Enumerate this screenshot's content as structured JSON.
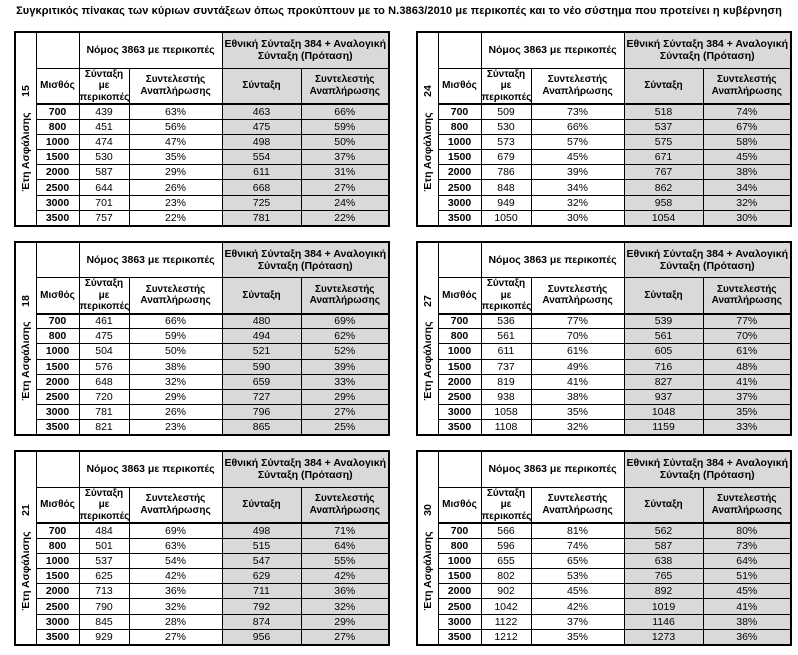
{
  "title": "Συγκριτικός  πίνακας των κύριων συντάξεων όπως προκύπτουν με το Ν.3863/2010 με περικοπές και το νέο σύστημα που προτείνει η κυβέρνηση",
  "colors": {
    "proposal_fill": "#d9d9d9",
    "border": "#000000",
    "background": "#ffffff"
  },
  "headers": {
    "side_label": "Έτη Ασφάλισης",
    "salary": "Μισθός",
    "group1": "Νόμος 3863 με περικοπές",
    "group2": "Εθνική Σύνταξη 384 + Αναλογική Σύνταξη (Πρόταση)",
    "col_pension_cuts": "Σύνταξη με περικοπές",
    "col_replacement_rate": "Συντελεστής Αναπλήρωσης",
    "col_pension": "Σύνταξη",
    "col_replacement_rate2": "Συντελεστής Αναπλήρωσης"
  },
  "tables": [
    {
      "years": "15",
      "rows": [
        [
          "700",
          "439",
          "63%",
          "463",
          "66%"
        ],
        [
          "800",
          "451",
          "56%",
          "475",
          "59%"
        ],
        [
          "1000",
          "474",
          "47%",
          "498",
          "50%"
        ],
        [
          "1500",
          "530",
          "35%",
          "554",
          "37%"
        ],
        [
          "2000",
          "587",
          "29%",
          "611",
          "31%"
        ],
        [
          "2500",
          "644",
          "26%",
          "668",
          "27%"
        ],
        [
          "3000",
          "701",
          "23%",
          "725",
          "24%"
        ],
        [
          "3500",
          "757",
          "22%",
          "781",
          "22%"
        ]
      ]
    },
    {
      "years": "24",
      "rows": [
        [
          "700",
          "509",
          "73%",
          "518",
          "74%"
        ],
        [
          "800",
          "530",
          "66%",
          "537",
          "67%"
        ],
        [
          "1000",
          "573",
          "57%",
          "575",
          "58%"
        ],
        [
          "1500",
          "679",
          "45%",
          "671",
          "45%"
        ],
        [
          "2000",
          "786",
          "39%",
          "767",
          "38%"
        ],
        [
          "2500",
          "848",
          "34%",
          "862",
          "34%"
        ],
        [
          "3000",
          "949",
          "32%",
          "958",
          "32%"
        ],
        [
          "3500",
          "1050",
          "30%",
          "1054",
          "30%"
        ]
      ]
    },
    {
      "years": "18",
      "rows": [
        [
          "700",
          "461",
          "66%",
          "480",
          "69%"
        ],
        [
          "800",
          "475",
          "59%",
          "494",
          "62%"
        ],
        [
          "1000",
          "504",
          "50%",
          "521",
          "52%"
        ],
        [
          "1500",
          "576",
          "38%",
          "590",
          "39%"
        ],
        [
          "2000",
          "648",
          "32%",
          "659",
          "33%"
        ],
        [
          "2500",
          "720",
          "29%",
          "727",
          "29%"
        ],
        [
          "3000",
          "781",
          "26%",
          "796",
          "27%"
        ],
        [
          "3500",
          "821",
          "23%",
          "865",
          "25%"
        ]
      ]
    },
    {
      "years": "27",
      "rows": [
        [
          "700",
          "536",
          "77%",
          "539",
          "77%"
        ],
        [
          "800",
          "561",
          "70%",
          "561",
          "70%"
        ],
        [
          "1000",
          "611",
          "61%",
          "605",
          "61%"
        ],
        [
          "1500",
          "737",
          "49%",
          "716",
          "48%"
        ],
        [
          "2000",
          "819",
          "41%",
          "827",
          "41%"
        ],
        [
          "2500",
          "938",
          "38%",
          "937",
          "37%"
        ],
        [
          "3000",
          "1058",
          "35%",
          "1048",
          "35%"
        ],
        [
          "3500",
          "1108",
          "32%",
          "1159",
          "33%"
        ]
      ]
    },
    {
      "years": "21",
      "rows": [
        [
          "700",
          "484",
          "69%",
          "498",
          "71%"
        ],
        [
          "800",
          "501",
          "63%",
          "515",
          "64%"
        ],
        [
          "1000",
          "537",
          "54%",
          "547",
          "55%"
        ],
        [
          "1500",
          "625",
          "42%",
          "629",
          "42%"
        ],
        [
          "2000",
          "713",
          "36%",
          "711",
          "36%"
        ],
        [
          "2500",
          "790",
          "32%",
          "792",
          "32%"
        ],
        [
          "3000",
          "845",
          "28%",
          "874",
          "29%"
        ],
        [
          "3500",
          "929",
          "27%",
          "956",
          "27%"
        ]
      ]
    },
    {
      "years": "30",
      "rows": [
        [
          "700",
          "566",
          "81%",
          "562",
          "80%"
        ],
        [
          "800",
          "596",
          "74%",
          "587",
          "73%"
        ],
        [
          "1000",
          "655",
          "65%",
          "638",
          "64%"
        ],
        [
          "1500",
          "802",
          "53%",
          "765",
          "51%"
        ],
        [
          "2000",
          "902",
          "45%",
          "892",
          "45%"
        ],
        [
          "2500",
          "1042",
          "42%",
          "1019",
          "41%"
        ],
        [
          "3000",
          "1122",
          "37%",
          "1146",
          "38%"
        ],
        [
          "3500",
          "1212",
          "35%",
          "1273",
          "36%"
        ]
      ]
    }
  ]
}
